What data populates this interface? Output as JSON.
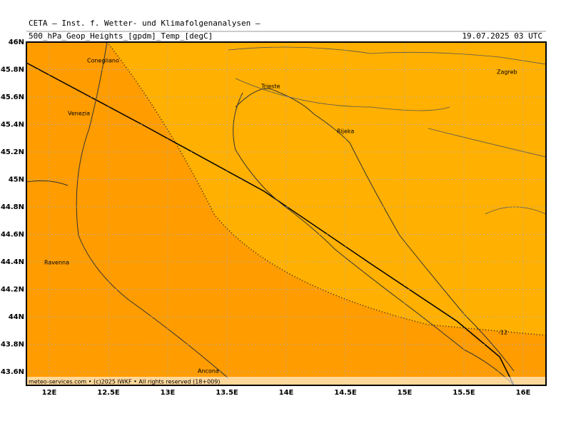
{
  "header": {
    "title": "CETA — Inst. f. Wetter- und Klimafolgenanalysen —",
    "subtitle": "500_hPa_Geop_Heights_[gpdm]_Temp_[degC]",
    "date": "19.07.2025 03 UTC"
  },
  "map": {
    "lat_ticks": [
      {
        "value": 46,
        "label": "46N"
      },
      {
        "value": 45.8,
        "label": "45.8N"
      },
      {
        "value": 45.6,
        "label": "45.6N"
      },
      {
        "value": 45.4,
        "label": "45.4N"
      },
      {
        "value": 45.2,
        "label": "45.2N"
      },
      {
        "value": 45,
        "label": "45N"
      },
      {
        "value": 44.8,
        "label": "44.8N"
      },
      {
        "value": 44.6,
        "label": "44.6N"
      },
      {
        "value": 44.4,
        "label": "44.4N"
      },
      {
        "value": 44.2,
        "label": "44.2N"
      },
      {
        "value": 44,
        "label": "44N"
      },
      {
        "value": 43.8,
        "label": "43.8N"
      },
      {
        "value": 43.6,
        "label": "43.6N"
      }
    ],
    "lon_ticks": [
      {
        "value": 12,
        "label": "12E"
      },
      {
        "value": 12.5,
        "label": "12.5E"
      },
      {
        "value": 13,
        "label": "13E"
      },
      {
        "value": 13.5,
        "label": "13.5E"
      },
      {
        "value": 14,
        "label": "14E"
      },
      {
        "value": 14.5,
        "label": "14.5E"
      },
      {
        "value": 15,
        "label": "15E"
      },
      {
        "value": 15.5,
        "label": "15.5E"
      },
      {
        "value": 16,
        "label": "16E"
      }
    ],
    "cities": [
      "Conegliano",
      "Venezia",
      "Trieste",
      "Rijeka",
      "Zagreb",
      "Ravenna",
      "Ancona"
    ],
    "contour_label": "-12",
    "footer": "meteo-services.com • (c)2025 IWKF • All rights reserved (18+009)"
  }
}
